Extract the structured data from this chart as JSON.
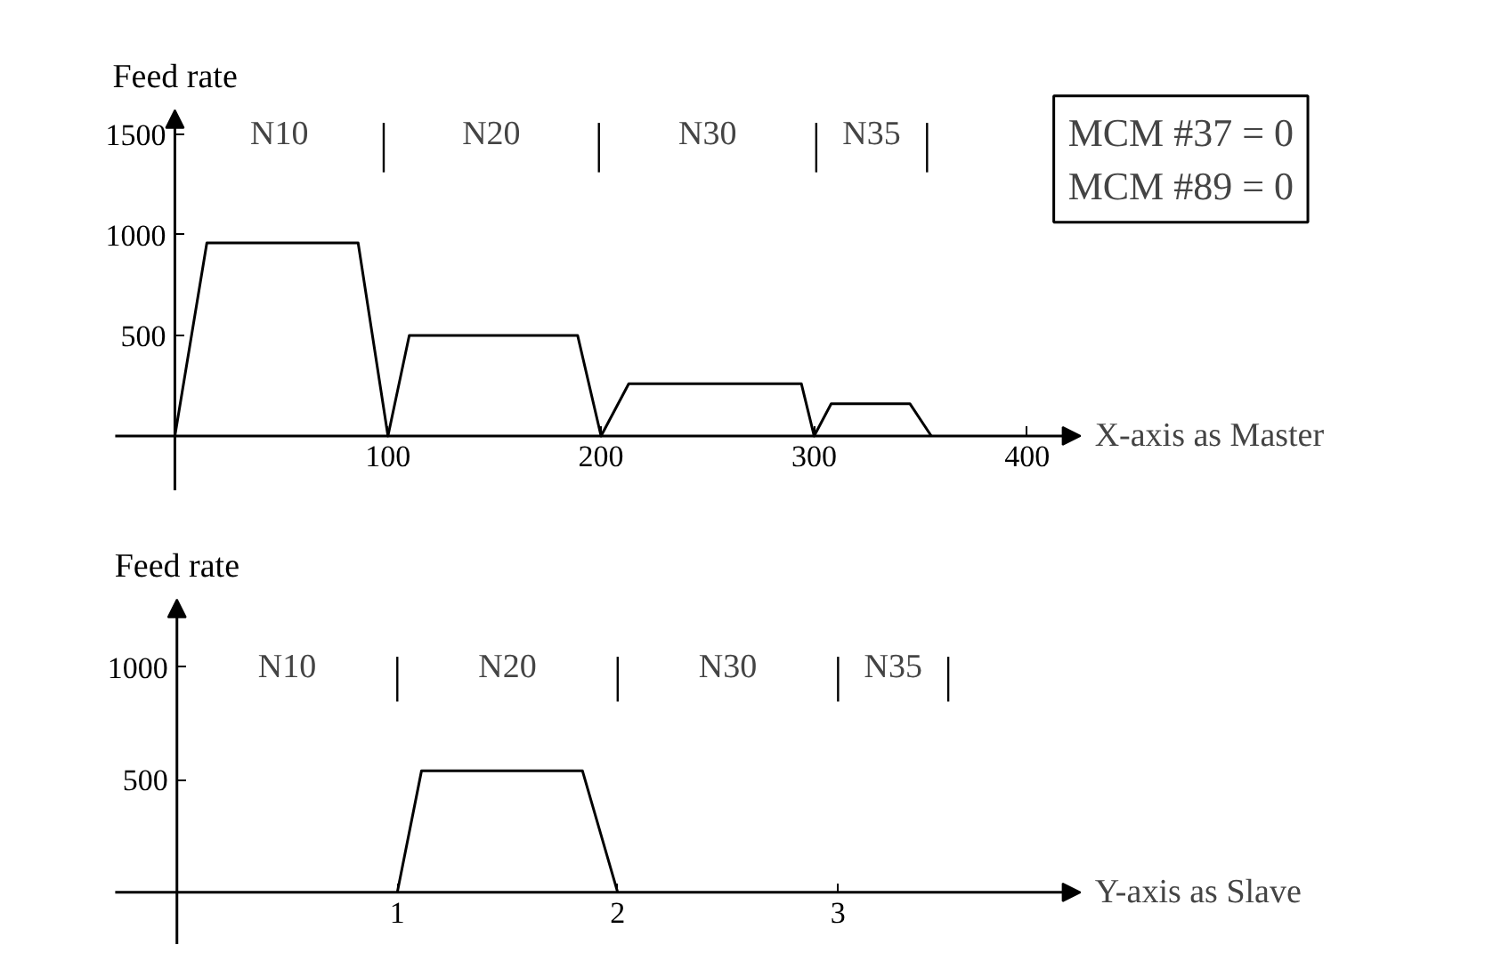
{
  "chart_data": [
    {
      "type": "line",
      "xlabel": "X-axis as Master",
      "ylabel": "Feed rate",
      "x": [
        0,
        15,
        86,
        100,
        110,
        189,
        200,
        213,
        294,
        300,
        308,
        345,
        355
      ],
      "series": [
        {
          "color": "#000000",
          "values": [
            0,
            960,
            960,
            0,
            500,
            500,
            0,
            260,
            260,
            0,
            160,
            160,
            0
          ]
        }
      ],
      "xlim": [
        -28,
        425
      ],
      "ylim": [
        -270,
        1620
      ],
      "xticks": [
        100,
        200,
        300,
        400
      ],
      "yticks": [
        500,
        1000,
        1500
      ],
      "grid": false,
      "marker": "none",
      "line_style": "solid",
      "ref_lines": [
        {
          "axis": "x",
          "value": 98
        },
        {
          "axis": "x",
          "value": 199
        },
        {
          "axis": "x",
          "value": 301
        },
        {
          "axis": "x",
          "value": 353
        }
      ],
      "annotations": [
        "N10",
        "N20",
        "N30",
        "N35",
        "MCM #37 = 0\nMCM #89 = 0"
      ]
    },
    {
      "type": "line",
      "xlabel": "Y-axis as Slave",
      "ylabel": "Feed rate",
      "x": [
        1,
        1.11,
        1.84,
        2
      ],
      "series": [
        {
          "color": "#000000",
          "values": [
            0,
            540,
            540,
            0
          ]
        }
      ],
      "xlim": [
        -0.28,
        4.1
      ],
      "ylim": [
        -230,
        1300
      ],
      "xticks": [
        1,
        2,
        3
      ],
      "yticks": [
        500,
        1000
      ],
      "grid": false,
      "marker": "none",
      "line_style": "solid",
      "ref_lines": [
        {
          "axis": "x",
          "value": 1
        },
        {
          "axis": "x",
          "value": 2
        },
        {
          "axis": "x",
          "value": 3
        },
        {
          "axis": "x",
          "value": 3.5
        }
      ],
      "annotations": [
        "N10",
        "N20",
        "N30",
        "N35"
      ]
    }
  ]
}
